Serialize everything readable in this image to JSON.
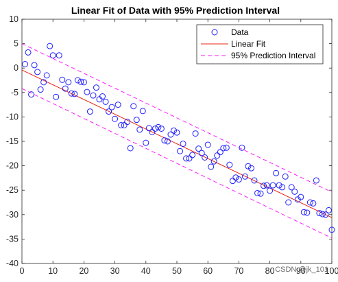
{
  "chart_data": {
    "type": "scatter",
    "title": "Linear Fit of Data with 95% Prediction Interval",
    "xlabel": "",
    "ylabel": "",
    "xlim": [
      0,
      100
    ],
    "ylim": [
      -40,
      10
    ],
    "xticks": [
      0,
      10,
      20,
      30,
      40,
      50,
      60,
      70,
      80,
      90,
      100
    ],
    "yticks": [
      10,
      5,
      0,
      -5,
      -10,
      -15,
      -20,
      -25,
      -30,
      -35,
      -40
    ],
    "xtick_labels": [
      "0",
      "10",
      "20",
      "30",
      "40",
      "50",
      "60",
      "70",
      "80",
      "90",
      "100"
    ],
    "ytick_labels": [
      "10",
      "5",
      "0",
      "-5",
      "-10",
      "-15",
      "-20",
      "-25",
      "-30",
      "-35",
      "-40"
    ],
    "grid": false,
    "legend_position": "top-right",
    "legend": [
      "Data",
      "Linear Fit",
      "95% Prediction Interval"
    ],
    "colors": {
      "data": "#1f1fff",
      "fit": "#e8200f",
      "interval": "#ff1aff",
      "axis": "#262626"
    },
    "series": [
      {
        "name": "Data",
        "type": "scatter",
        "x": [
          1,
          2,
          3,
          4,
          5,
          6,
          7,
          8,
          9,
          10,
          11,
          12,
          13,
          14,
          15,
          16,
          17,
          18,
          19,
          20,
          21,
          22,
          23,
          24,
          25,
          26,
          27,
          28,
          29,
          30,
          31,
          32,
          33,
          34,
          35,
          36,
          37,
          38,
          39,
          40,
          41,
          42,
          43,
          44,
          45,
          46,
          47,
          48,
          49,
          50,
          51,
          52,
          53,
          54,
          55,
          56,
          57,
          58,
          59,
          60,
          61,
          62,
          63,
          64,
          65,
          66,
          67,
          68,
          69,
          70,
          71,
          72,
          73,
          74,
          75,
          76,
          77,
          78,
          79,
          80,
          81,
          82,
          83,
          84,
          85,
          86,
          87,
          88,
          89,
          90,
          91,
          92,
          93,
          94,
          95,
          96,
          97,
          98,
          99,
          100
        ],
        "y": [
          0.8,
          3.2,
          -5.4,
          0.6,
          -0.8,
          -4.4,
          -2.9,
          -1.5,
          4.5,
          2.6,
          -5.9,
          2.6,
          -2.4,
          -4.2,
          -2.9,
          -5.2,
          -5.3,
          -2.5,
          -2.8,
          -2.9,
          -4.9,
          -8.9,
          -5.6,
          -4.0,
          -6.4,
          -5.8,
          -6.9,
          -8.9,
          -8.0,
          -10.4,
          -7.5,
          -11.7,
          -11.7,
          -11.0,
          -16.4,
          -7.8,
          -10.6,
          -12.6,
          -8.8,
          -15.3,
          -12.3,
          -13.1,
          -12.4,
          -12.1,
          -12.4,
          -14.8,
          -15.0,
          -13.6,
          -12.8,
          -13.2,
          -17.0,
          -15.5,
          -18.5,
          -18.5,
          -17.8,
          -13.4,
          -16.5,
          -17.4,
          -18.3,
          -15.7,
          -20.2,
          -19.1,
          -17.9,
          -17.2,
          -16.4,
          -16.3,
          -19.8,
          -23.1,
          -22.4,
          -22.8,
          -16.3,
          -22.2,
          -20.1,
          -20.5,
          -23.0,
          -25.6,
          -25.7,
          -24.1,
          -24.0,
          -25.1,
          -24.0,
          -21.5,
          -24.0,
          -24.4,
          -22.2,
          -27.5,
          -24.4,
          -25.3,
          -26.9,
          -26.4,
          -29.5,
          -29.6,
          -27.5,
          -27.7,
          -23.0,
          -29.7,
          -29.9,
          -30.0,
          -29.1,
          -33.1
        ]
      },
      {
        "name": "Linear Fit",
        "type": "line",
        "x": [
          0,
          100
        ],
        "y": [
          -0.4,
          -30.6
        ]
      },
      {
        "name": "95% Prediction Interval",
        "type": "line",
        "dash": true,
        "x": [
          0,
          100
        ],
        "y": [
          5.0,
          -25.4
        ]
      },
      {
        "name": "95% Prediction Interval (lower)",
        "type": "line",
        "dash": true,
        "x": [
          0,
          100
        ],
        "y": [
          -4.2,
          -34.8
        ]
      }
    ]
  },
  "watermark": "CSDN @jk_101"
}
